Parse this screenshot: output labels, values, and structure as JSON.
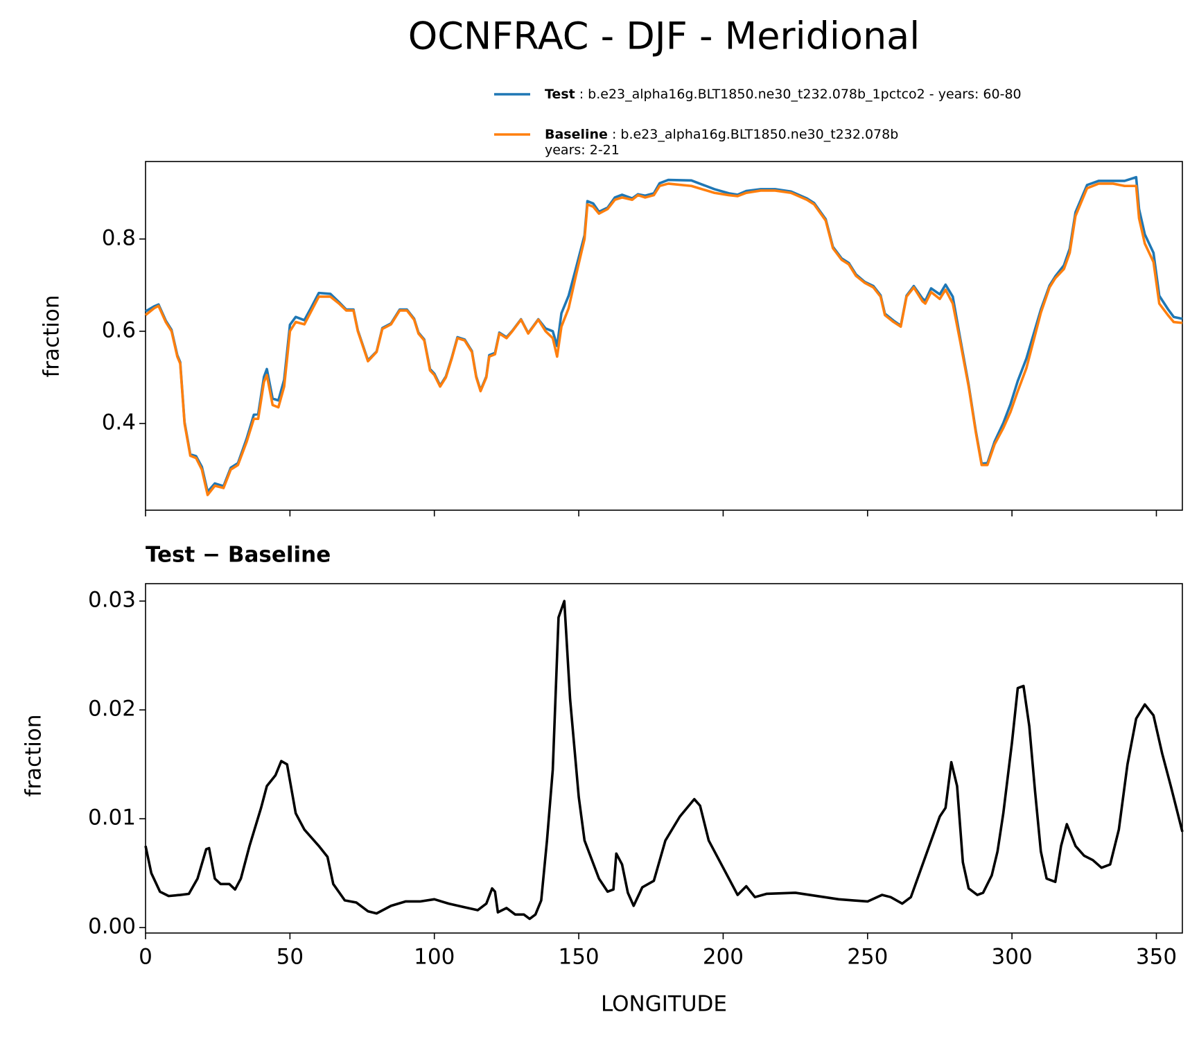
{
  "chart_data": [
    {
      "type": "line",
      "title": "OCNFRAC - DJF - Meridional",
      "ylabel": "fraction",
      "x": [
        0,
        3,
        4.5,
        7,
        9,
        11,
        12,
        13.5,
        15.5,
        17.5,
        19.5,
        21.5,
        24,
        27,
        29.5,
        32,
        35,
        37.5,
        39,
        41,
        42,
        44,
        46,
        48,
        50,
        52,
        55,
        57.5,
        60,
        64,
        67,
        69.5,
        72,
        73.5,
        77,
        80,
        82,
        85,
        88,
        90.5,
        93,
        94.5,
        96.5,
        98.5,
        100,
        102,
        104,
        106,
        108,
        110.5,
        113,
        114.5,
        116,
        118,
        119,
        121,
        122.5,
        125,
        127,
        130,
        132.5,
        136,
        138.5,
        141,
        142.5,
        144,
        146.5,
        149,
        152,
        153,
        155,
        157,
        160,
        162.5,
        165,
        168.5,
        170.5,
        173,
        176,
        178,
        181,
        189,
        197,
        202,
        205,
        208,
        213,
        218,
        223.5,
        229,
        231.5,
        235.5,
        238,
        241,
        243.5,
        246,
        249,
        252,
        254.5,
        256,
        259,
        261.5,
        263.5,
        266,
        269,
        270,
        272,
        275,
        277,
        279.5,
        282,
        285,
        287.5,
        289.5,
        291.5,
        294,
        297,
        299.5,
        302,
        305,
        307.5,
        310,
        313,
        315,
        318,
        320,
        322,
        326,
        330,
        335,
        339,
        341,
        343,
        344,
        346,
        349,
        351,
        354,
        356,
        359
      ],
      "series": [
        {
          "name": "Test",
          "description": [
            ": b.e23_alpha16g.BLT1850.ne30_t232.078b_1pctco2 - years: 60-80"
          ],
          "color": "#1f77b4",
          "values": [
            0.643,
            0.654,
            0.658,
            0.623,
            0.603,
            0.548,
            0.533,
            0.403,
            0.333,
            0.329,
            0.306,
            0.252,
            0.27,
            0.264,
            0.304,
            0.314,
            0.367,
            0.419,
            0.42,
            0.501,
            0.518,
            0.454,
            0.45,
            0.495,
            0.614,
            0.631,
            0.624,
            0.653,
            0.683,
            0.681,
            0.663,
            0.647,
            0.647,
            0.602,
            0.537,
            0.556,
            0.607,
            0.617,
            0.647,
            0.647,
            0.627,
            0.597,
            0.582,
            0.518,
            0.508,
            0.482,
            0.502,
            0.542,
            0.587,
            0.582,
            0.557,
            0.502,
            0.472,
            0.502,
            0.548,
            0.553,
            0.597,
            0.587,
            0.601,
            0.626,
            0.596,
            0.626,
            0.606,
            0.6,
            0.568,
            0.639,
            0.677,
            0.736,
            0.808,
            0.882,
            0.877,
            0.859,
            0.868,
            0.89,
            0.896,
            0.888,
            0.897,
            0.894,
            0.899,
            0.921,
            0.928,
            0.927,
            0.908,
            0.899,
            0.896,
            0.904,
            0.908,
            0.908,
            0.903,
            0.888,
            0.878,
            0.843,
            0.783,
            0.758,
            0.748,
            0.723,
            0.707,
            0.698,
            0.678,
            0.638,
            0.623,
            0.612,
            0.677,
            0.698,
            0.671,
            0.666,
            0.693,
            0.68,
            0.701,
            0.675,
            0.587,
            0.484,
            0.383,
            0.313,
            0.314,
            0.361,
            0.401,
            0.442,
            0.492,
            0.541,
            0.594,
            0.647,
            0.699,
            0.719,
            0.743,
            0.779,
            0.858,
            0.917,
            0.926,
            0.926,
            0.926,
            0.93,
            0.934,
            0.865,
            0.81,
            0.77,
            0.677,
            0.648,
            0.631,
            0.627
          ]
        },
        {
          "name": "Baseline",
          "description": [
            ": b.e23_alpha16g.BLT1850.ne30_t232.078b",
            "years: 2-21"
          ],
          "color": "#ff7f0e",
          "values": [
            0.635,
            0.65,
            0.655,
            0.62,
            0.6,
            0.545,
            0.53,
            0.4,
            0.33,
            0.325,
            0.3,
            0.245,
            0.265,
            0.26,
            0.3,
            0.31,
            0.36,
            0.41,
            0.41,
            0.49,
            0.505,
            0.44,
            0.435,
            0.48,
            0.6,
            0.62,
            0.615,
            0.645,
            0.675,
            0.675,
            0.66,
            0.645,
            0.645,
            0.6,
            0.535,
            0.555,
            0.605,
            0.615,
            0.645,
            0.645,
            0.625,
            0.595,
            0.58,
            0.515,
            0.505,
            0.48,
            0.5,
            0.54,
            0.585,
            0.58,
            0.555,
            0.5,
            0.47,
            0.5,
            0.545,
            0.55,
            0.595,
            0.585,
            0.6,
            0.625,
            0.595,
            0.625,
            0.6,
            0.585,
            0.545,
            0.61,
            0.65,
            0.72,
            0.8,
            0.875,
            0.87,
            0.855,
            0.865,
            0.885,
            0.89,
            0.885,
            0.895,
            0.89,
            0.895,
            0.915,
            0.92,
            0.915,
            0.9,
            0.895,
            0.893,
            0.9,
            0.905,
            0.905,
            0.9,
            0.885,
            0.875,
            0.84,
            0.78,
            0.755,
            0.745,
            0.72,
            0.705,
            0.695,
            0.675,
            0.635,
            0.62,
            0.61,
            0.675,
            0.695,
            0.665,
            0.66,
            0.685,
            0.67,
            0.69,
            0.66,
            0.58,
            0.48,
            0.38,
            0.31,
            0.31,
            0.355,
            0.39,
            0.425,
            0.47,
            0.52,
            0.58,
            0.64,
            0.695,
            0.715,
            0.735,
            0.77,
            0.85,
            0.91,
            0.92,
            0.92,
            0.915,
            0.915,
            0.915,
            0.845,
            0.79,
            0.75,
            0.66,
            0.635,
            0.62,
            0.618
          ]
        }
      ],
      "xlim": [
        0,
        359
      ],
      "ylim": [
        0.212,
        0.968
      ],
      "yticks": [
        0.4,
        0.6,
        0.8
      ]
    },
    {
      "type": "line",
      "title": "Test − Baseline",
      "ylabel": "fraction",
      "xlabel": "LONGITUDE",
      "x": [
        0,
        2,
        5,
        8,
        12,
        15,
        18,
        21,
        22,
        24,
        26,
        29,
        31,
        33,
        36,
        40,
        42,
        45,
        47,
        49,
        52,
        55,
        60,
        63,
        65,
        69,
        73,
        77,
        80,
        85,
        90,
        95,
        100,
        105,
        110,
        115,
        118,
        120,
        121,
        122,
        125,
        128,
        131,
        133,
        135,
        137,
        139,
        141,
        143,
        145,
        147,
        150,
        152,
        154,
        157,
        160,
        162,
        163,
        165,
        167,
        169,
        172,
        176,
        180,
        185,
        190,
        192,
        195,
        200,
        205,
        208,
        211,
        215,
        225,
        235,
        240,
        245,
        250,
        255,
        258,
        262,
        265,
        270,
        275,
        277,
        279,
        281,
        283,
        285,
        288,
        290,
        293,
        295,
        297,
        300,
        302,
        304,
        306,
        308,
        310,
        312,
        315,
        317,
        319,
        322,
        325,
        328,
        331,
        334,
        337,
        340,
        343,
        346,
        349,
        352,
        355,
        359
      ],
      "series": [
        {
          "name": "Test − Baseline",
          "color": "#000000",
          "values": [
            0.0075,
            0.005,
            0.0033,
            0.0029,
            0.003,
            0.0031,
            0.0045,
            0.0072,
            0.0073,
            0.0045,
            0.004,
            0.004,
            0.0035,
            0.0045,
            0.0075,
            0.011,
            0.013,
            0.014,
            0.0153,
            0.015,
            0.0105,
            0.009,
            0.0075,
            0.0065,
            0.004,
            0.0025,
            0.0023,
            0.0015,
            0.0013,
            0.002,
            0.0024,
            0.0024,
            0.0026,
            0.0022,
            0.0019,
            0.0016,
            0.0022,
            0.0036,
            0.0033,
            0.0014,
            0.0018,
            0.0012,
            0.0012,
            0.0008,
            0.0012,
            0.0025,
            0.008,
            0.0145,
            0.0285,
            0.03,
            0.021,
            0.012,
            0.008,
            0.0066,
            0.0045,
            0.0033,
            0.0035,
            0.0068,
            0.0058,
            0.0032,
            0.002,
            0.0037,
            0.0043,
            0.008,
            0.0102,
            0.0118,
            0.0112,
            0.008,
            0.0055,
            0.003,
            0.0038,
            0.0028,
            0.0031,
            0.0032,
            0.0028,
            0.0026,
            0.0025,
            0.0024,
            0.003,
            0.0028,
            0.0022,
            0.0028,
            0.0065,
            0.0102,
            0.011,
            0.0152,
            0.013,
            0.006,
            0.0036,
            0.003,
            0.0032,
            0.0048,
            0.007,
            0.0105,
            0.017,
            0.022,
            0.0222,
            0.0185,
            0.0125,
            0.007,
            0.0045,
            0.0042,
            0.0075,
            0.0095,
            0.0075,
            0.0066,
            0.0062,
            0.0055,
            0.0058,
            0.009,
            0.015,
            0.0192,
            0.0205,
            0.0195,
            0.016,
            0.013,
            0.0088
          ]
        }
      ],
      "xlim": [
        0,
        359
      ],
      "xticks": [
        0,
        50,
        100,
        150,
        200,
        250,
        300,
        350
      ],
      "ylim": [
        -0.0005,
        0.0316
      ],
      "yticks": [
        {
          "value": 0,
          "label": "0.00"
        },
        0.01,
        0.02,
        0.03
      ]
    }
  ]
}
